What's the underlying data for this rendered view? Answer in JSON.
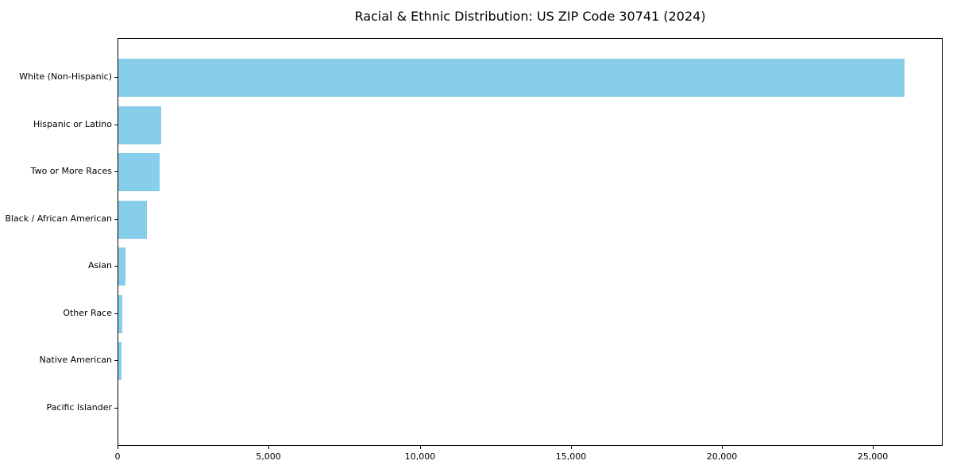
{
  "chart_data": {
    "type": "bar",
    "orientation": "horizontal",
    "title": "Racial & Ethnic Distribution: US ZIP Code 30741 (2024)",
    "categories": [
      "White (Non-Hispanic)",
      "Hispanic or Latino",
      "Two or More Races",
      "Black / African American",
      "Asian",
      "Other Race",
      "Native American",
      "Pacific Islander"
    ],
    "values": [
      26000,
      1430,
      1375,
      955,
      240,
      125,
      115,
      0
    ],
    "xlabel": "",
    "ylabel": "",
    "xlim": [
      0,
      27300
    ],
    "xticks": [
      0,
      5000,
      10000,
      15000,
      20000,
      25000
    ],
    "xtick_labels": [
      "0",
      "5,000",
      "10,000",
      "15,000",
      "20,000",
      "25,000"
    ],
    "bar_color": "#87CEEB",
    "text_color": "#000000",
    "grid": false,
    "legend_position": "none"
  }
}
